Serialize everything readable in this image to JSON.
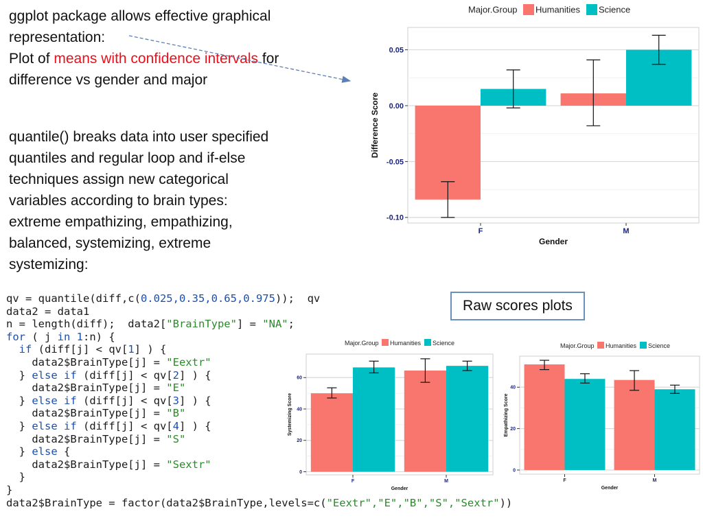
{
  "intro": {
    "line1": "ggplot package allows effective graphical",
    "line2": "representation:",
    "line3_pre": "Plot of ",
    "line3_highlight": "means with confidence intervals",
    "line3_post": " for",
    "line4": "difference vs gender and major"
  },
  "quantile_text": [
    "quantile() breaks data into user specified",
    "quantiles and regular loop and if-else",
    "techniques assign new categorical",
    "variables according to brain types:",
    "extreme empathizing, empathizing,",
    "balanced, systemizing, extreme",
    "systemizing:"
  ],
  "raw_scores_label": "Raw scores plots",
  "code": {
    "l1a": "qv = quantile(diff,c(",
    "l1n": "0.025,0.35,0.65,0.975",
    "l1b": "));  qv",
    "l2": "data2 = data1",
    "l3a": "n = length(diff);  data2[",
    "l3s1": "\"BrainType\"",
    "l3b": "] = ",
    "l3s2": "\"NA\"",
    "l3c": ";",
    "l4k": "for",
    "l4a": " ( j ",
    "l4k2": "in",
    "l4n": " 1",
    "l4b": ":n) {",
    "l5k": "if",
    "l5a": " (diff[j] < qv[",
    "l5n": "1",
    "l5b": "] ) {",
    "l6a": "    data2$BrainType[j] = ",
    "l6s": "\"Eextr\"",
    "l7a": "  } ",
    "l7k": "else if",
    "l7b": " (diff[j] < qv[",
    "l7n": "2",
    "l7c": "] ) {",
    "l8a": "    data2$BrainType[j] = ",
    "l8s": "\"E\"",
    "l9a": "  } ",
    "l9k": "else if",
    "l9b": " (diff[j] < qv[",
    "l9n": "3",
    "l9c": "] ) {",
    "l10a": "    data2$BrainType[j] = ",
    "l10s": "\"B\"",
    "l11a": "  } ",
    "l11k": "else if",
    "l11b": " (diff[j] < qv[",
    "l11n": "4",
    "l11c": "] ) {",
    "l12a": "    data2$BrainType[j] = ",
    "l12s": "\"S\"",
    "l13a": "  } ",
    "l13k": "else",
    "l13b": " {",
    "l14a": "    data2$BrainType[j] = ",
    "l14s": "\"Sextr\"",
    "l15": "  }",
    "l16": "}",
    "l17a": "data2$BrainType = factor(data2$BrainType,levels=c(",
    "l17s": "\"Eextr\",\"E\",\"B\",\"S\",\"Sextr\"",
    "l17b": "))"
  },
  "colors": {
    "humanities": "#f8766d",
    "science": "#00bfc4",
    "panel_bg": "#ffffff",
    "grid": "#d9d9d9",
    "axis_text": "#1a237e",
    "arrow": "#5b7fb5"
  },
  "chart_data": [
    {
      "type": "bar",
      "title": "",
      "xlabel": "Gender",
      "ylabel": "Difference Score",
      "legend_title": "Major.Group",
      "legend_position": "top",
      "categories": [
        "F",
        "M"
      ],
      "series": [
        {
          "name": "Humanities",
          "values": [
            -0.084,
            0.011
          ],
          "ci_low": [
            -0.1,
            -0.018
          ],
          "ci_high": [
            -0.068,
            0.041
          ]
        },
        {
          "name": "Science",
          "values": [
            0.015,
            0.05
          ],
          "ci_low": [
            -0.002,
            0.037
          ],
          "ci_high": [
            0.032,
            0.063
          ]
        }
      ],
      "yticks": [
        -0.1,
        -0.05,
        0.0,
        0.05
      ],
      "ytick_labels": [
        "-0.10",
        "-0.05",
        "0.00",
        "0.05"
      ],
      "ylim": [
        -0.105,
        0.07
      ],
      "grid": true
    },
    {
      "type": "bar",
      "title": "",
      "xlabel": "Gender",
      "ylabel": "Systemizing Score",
      "legend_title": "Major.Group",
      "legend_position": "top",
      "categories": [
        "F",
        "M"
      ],
      "series": [
        {
          "name": "Humanities",
          "values": [
            50,
            64.5
          ],
          "ci_low": [
            47,
            57
          ],
          "ci_high": [
            53.5,
            72
          ]
        },
        {
          "name": "Science",
          "values": [
            66.5,
            67.5
          ],
          "ci_low": [
            63,
            64.5
          ],
          "ci_high": [
            70.5,
            70.5
          ]
        }
      ],
      "yticks": [
        0,
        20,
        40,
        60
      ],
      "ytick_labels": [
        "0",
        "20",
        "40",
        "60"
      ],
      "ylim": [
        -2,
        75
      ],
      "grid": true
    },
    {
      "type": "bar",
      "title": "",
      "xlabel": "Gender",
      "ylabel": "Empathizing Score",
      "legend_title": "Major.Group",
      "legend_position": "top",
      "categories": [
        "F",
        "M"
      ],
      "series": [
        {
          "name": "Humanities",
          "values": [
            51,
            43.5
          ],
          "ci_low": [
            48.5,
            38.5
          ],
          "ci_high": [
            53,
            48
          ]
        },
        {
          "name": "Science",
          "values": [
            44,
            39
          ],
          "ci_low": [
            42,
            37
          ],
          "ci_high": [
            46.5,
            41
          ]
        }
      ],
      "yticks": [
        0,
        20,
        40
      ],
      "ytick_labels": [
        "0",
        "20",
        "40"
      ],
      "ylim": [
        -2,
        55
      ],
      "grid": true
    }
  ]
}
